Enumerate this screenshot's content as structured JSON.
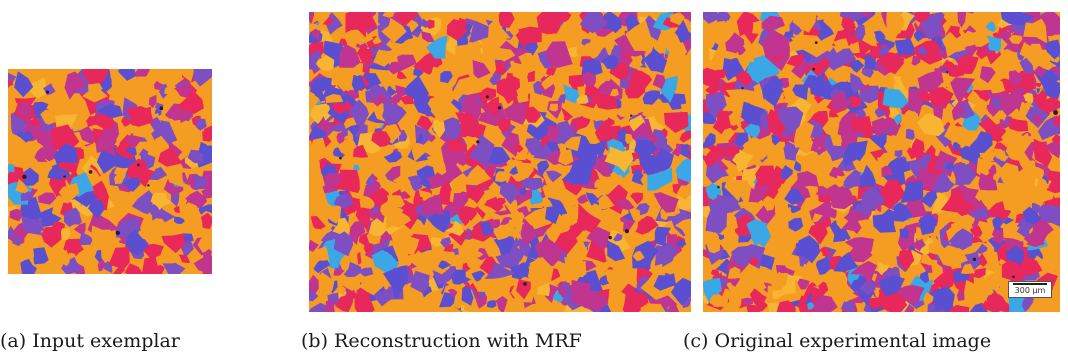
{
  "figure": {
    "palette": [
      "#f59c22",
      "#e8275a",
      "#c0358f",
      "#7d4fc2",
      "#5a4fd0",
      "#3aa7e6",
      "#f7b531"
    ],
    "panels": [
      {
        "id": "a",
        "caption": "(a) Input exemplar",
        "seed": 11,
        "blobs": 260
      },
      {
        "id": "b",
        "caption": "(b) Reconstruction with MRF",
        "seed": 37,
        "blobs": 900
      },
      {
        "id": "c",
        "caption": "(c) Original experimental image",
        "seed": 73,
        "blobs": 950,
        "scale_bar": "300 μm"
      }
    ]
  }
}
